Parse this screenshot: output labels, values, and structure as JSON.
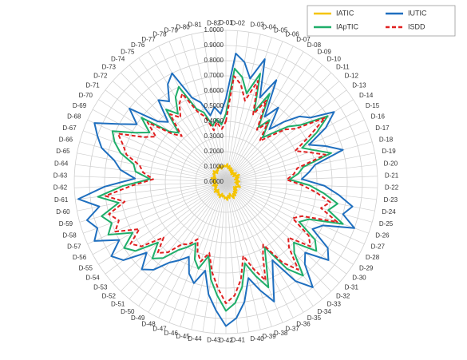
{
  "chart_data": {
    "type": "radar",
    "categories": [
      "D-01",
      "D-02",
      "D-03",
      "D-04",
      "D-05",
      "D-06",
      "D-07",
      "D-08",
      "D-09",
      "D-10",
      "D-11",
      "D-12",
      "D-13",
      "D-14",
      "D-15",
      "D-16",
      "D-17",
      "D-18",
      "D-19",
      "D-20",
      "D-21",
      "D-22",
      "D-23",
      "D-24",
      "D-25",
      "D-26",
      "D-27",
      "D-28",
      "D-29",
      "D-30",
      "D-31",
      "D-32",
      "D-33",
      "D-34",
      "D-35",
      "D-36",
      "D-37",
      "D-38",
      "D-39",
      "D-40",
      "D-41",
      "D-42",
      "D-43",
      "D-44",
      "D-45",
      "D-46",
      "D-47",
      "D-48",
      "D-49",
      "D-50",
      "D-51",
      "D-52",
      "D-53",
      "D-54",
      "D-55",
      "D-56",
      "D-57",
      "D-58",
      "D-59",
      "D-60",
      "D-61",
      "D-62",
      "D-63",
      "D-64",
      "D-65",
      "D-66",
      "D-67",
      "D-68",
      "D-69",
      "D-70",
      "D-71",
      "D-72",
      "D-73",
      "D-74",
      "D-75",
      "D-76",
      "D-77",
      "D-78",
      "D-79",
      "D-80",
      "D-81",
      "D-82"
    ],
    "series": [
      {
        "name": "IATIC",
        "color": "#f5c400",
        "dash": false,
        "values": [
          0.1,
          0.12,
          0.09,
          0.11,
          0.08,
          0.1,
          0.07,
          0.09,
          0.06,
          0.08,
          0.07,
          0.09,
          0.06,
          0.08,
          0.1,
          0.07,
          0.09,
          0.06,
          0.08,
          0.07,
          0.09,
          0.06,
          0.08,
          0.07,
          0.09,
          0.1,
          0.07,
          0.08,
          0.06,
          0.09,
          0.07,
          0.1,
          0.08,
          0.11,
          0.09,
          0.12,
          0.1,
          0.08,
          0.11,
          0.09,
          0.12,
          0.1,
          0.11,
          0.09,
          0.1,
          0.08,
          0.11,
          0.09,
          0.1,
          0.08,
          0.09,
          0.07,
          0.1,
          0.08,
          0.09,
          0.07,
          0.08,
          0.06,
          0.09,
          0.07,
          0.08,
          0.06,
          0.09,
          0.07,
          0.08,
          0.1,
          0.07,
          0.09,
          0.08,
          0.1,
          0.09,
          0.11,
          0.08,
          0.1,
          0.09,
          0.11,
          0.1,
          0.12,
          0.09,
          0.11,
          0.1,
          0.11
        ]
      },
      {
        "name": "IUTIC",
        "color": "#1f6fbf",
        "dash": false,
        "values": [
          0.55,
          0.85,
          0.8,
          0.7,
          0.85,
          0.6,
          0.75,
          0.5,
          0.6,
          0.45,
          0.55,
          0.65,
          0.7,
          0.85,
          0.75,
          0.6,
          0.7,
          0.8,
          0.6,
          0.55,
          0.5,
          0.65,
          0.75,
          0.85,
          0.8,
          0.9,
          0.7,
          0.65,
          0.8,
          0.85,
          0.7,
          0.75,
          0.9,
          0.8,
          0.6,
          0.7,
          0.85,
          0.75,
          0.65,
          0.8,
          0.9,
          0.95,
          0.85,
          0.75,
          0.6,
          0.7,
          0.65,
          0.55,
          0.6,
          0.65,
          0.75,
          0.8,
          0.7,
          0.85,
          0.9,
          0.8,
          0.95,
          0.9,
          0.95,
          0.85,
          0.98,
          0.8,
          0.6,
          0.7,
          0.75,
          0.85,
          0.9,
          0.95,
          0.8,
          0.7,
          0.8,
          0.6,
          0.55,
          0.7,
          0.65,
          0.75,
          0.8,
          0.6,
          0.55,
          0.45,
          0.5,
          0.45
        ]
      },
      {
        "name": "IApTIC",
        "color": "#1fae6a",
        "dash": false,
        "values": [
          0.45,
          0.75,
          0.7,
          0.6,
          0.75,
          0.5,
          0.65,
          0.42,
          0.5,
          0.38,
          0.45,
          0.55,
          0.62,
          0.8,
          0.68,
          0.55,
          0.62,
          0.72,
          0.52,
          0.48,
          0.42,
          0.55,
          0.65,
          0.75,
          0.7,
          0.82,
          0.6,
          0.55,
          0.7,
          0.75,
          0.6,
          0.65,
          0.8,
          0.7,
          0.5,
          0.6,
          0.75,
          0.65,
          0.55,
          0.7,
          0.8,
          0.85,
          0.75,
          0.65,
          0.5,
          0.6,
          0.55,
          0.45,
          0.5,
          0.55,
          0.65,
          0.7,
          0.6,
          0.75,
          0.8,
          0.7,
          0.85,
          0.8,
          0.85,
          0.72,
          0.85,
          0.68,
          0.5,
          0.6,
          0.62,
          0.72,
          0.78,
          0.82,
          0.68,
          0.6,
          0.7,
          0.5,
          0.45,
          0.62,
          0.55,
          0.65,
          0.7,
          0.52,
          0.48,
          0.38,
          0.42,
          0.38
        ]
      },
      {
        "name": "ISDD",
        "color": "#e02020",
        "dash": true,
        "values": [
          0.4,
          0.7,
          0.65,
          0.55,
          0.7,
          0.48,
          0.6,
          0.4,
          0.48,
          0.35,
          0.42,
          0.52,
          0.58,
          0.78,
          0.62,
          0.5,
          0.58,
          0.68,
          0.48,
          0.45,
          0.4,
          0.5,
          0.6,
          0.7,
          0.65,
          0.78,
          0.55,
          0.5,
          0.65,
          0.7,
          0.55,
          0.6,
          0.75,
          0.65,
          0.48,
          0.55,
          0.7,
          0.6,
          0.5,
          0.65,
          0.75,
          0.8,
          0.7,
          0.6,
          0.48,
          0.55,
          0.5,
          0.42,
          0.48,
          0.5,
          0.6,
          0.65,
          0.55,
          0.7,
          0.75,
          0.65,
          0.8,
          0.75,
          0.8,
          0.68,
          0.8,
          0.62,
          0.48,
          0.55,
          0.58,
          0.68,
          0.72,
          0.78,
          0.62,
          0.55,
          0.65,
          0.48,
          0.42,
          0.58,
          0.52,
          0.6,
          0.65,
          0.5,
          0.45,
          0.35,
          0.4,
          0.35
        ]
      }
    ],
    "rlim": [
      0,
      1
    ],
    "rticks": [
      {
        "value": 0,
        "label": "0.0000"
      },
      {
        "value": 0.1,
        "label": "0.1000"
      },
      {
        "value": 0.2,
        "label": "0.2000"
      },
      {
        "value": 0.3,
        "label": "0.3000"
      },
      {
        "value": 0.4,
        "label": "0.4000"
      },
      {
        "value": 0.5,
        "label": "0.5000"
      },
      {
        "value": 0.6,
        "label": "0.6000"
      },
      {
        "value": 0.7,
        "label": "0.7000"
      },
      {
        "value": 0.8,
        "label": "0.8000"
      },
      {
        "value": 0.9,
        "label": "0.9000"
      },
      {
        "value": 1,
        "label": "1.0000"
      }
    ],
    "grid": true,
    "legend": "top-right"
  }
}
